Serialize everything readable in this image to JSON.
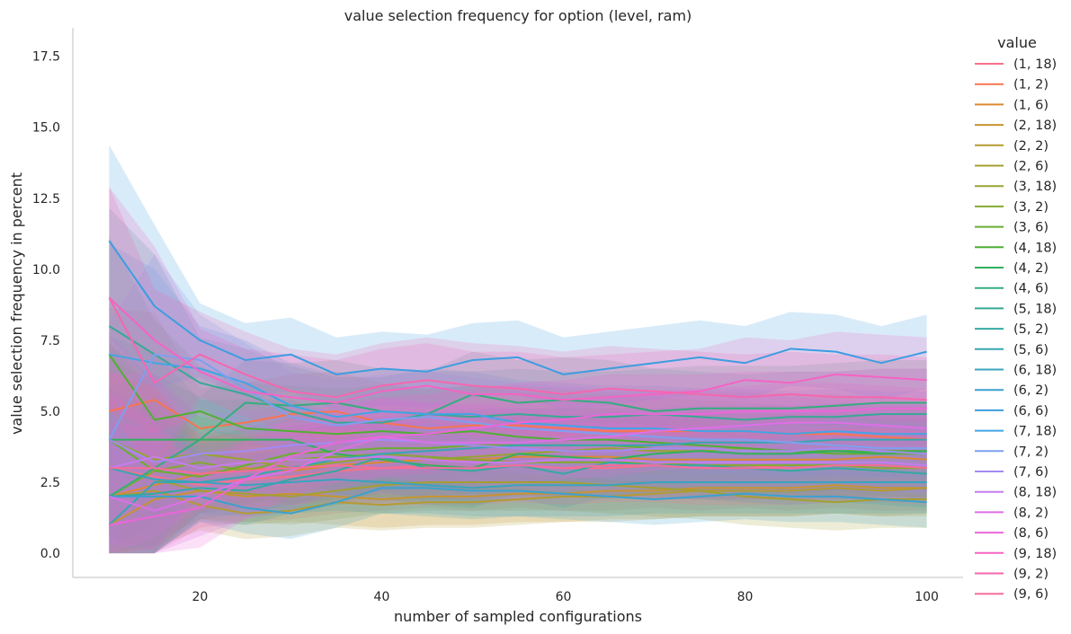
{
  "chart_data": {
    "type": "line",
    "title": "value selection frequency for option (level, ram)",
    "xlabel": "number of sampled configurations",
    "ylabel": "value selection frequency in percent",
    "xlim": [
      6,
      104
    ],
    "ylim": [
      -0.85,
      18.5
    ],
    "xticks": [
      20,
      40,
      60,
      80,
      100
    ],
    "yticks": [
      0.0,
      2.5,
      5.0,
      7.5,
      10.0,
      12.5,
      15.0,
      17.5
    ],
    "ytick_labels": [
      "0.0",
      "2.5",
      "5.0",
      "7.5",
      "10.0",
      "12.5",
      "15.0",
      "17.5"
    ],
    "grid": false,
    "legend_title": "value",
    "legend_position": "right",
    "x": [
      10,
      15,
      20,
      25,
      30,
      35,
      40,
      45,
      50,
      55,
      60,
      65,
      70,
      75,
      80,
      85,
      90,
      95,
      100
    ],
    "series": [
      {
        "name": "(1, 18)",
        "color": "#f77189",
        "values": [
          3,
          2.7,
          2.4,
          2.6,
          2.7,
          2.9,
          3.0,
          3.1,
          3.0,
          3.1,
          3.0,
          3.0,
          3.1,
          3.0,
          3.1,
          3.0,
          3.1,
          3.0,
          3.0
        ],
        "ci_halfwidth": 1.5
      },
      {
        "name": "(1, 2)",
        "color": "#f7754f",
        "values": [
          5,
          5.4,
          4.4,
          4.6,
          4.9,
          5.0,
          4.6,
          4.4,
          4.5,
          4.5,
          4.4,
          4.3,
          4.3,
          4.3,
          4.3,
          4.2,
          4.2,
          4.1,
          4.0
        ],
        "ci_halfwidth": 1.4
      },
      {
        "name": "(1, 6)",
        "color": "#dc8932",
        "values": [
          2,
          2.4,
          2.8,
          3.0,
          2.9,
          3.1,
          3.2,
          3.3,
          3.3,
          3.4,
          3.4,
          3.4,
          3.3,
          3.3,
          3.3,
          3.3,
          3.3,
          3.4,
          3.3
        ],
        "ci_halfwidth": 1.4
      },
      {
        "name": "(2, 18)",
        "color": "#c69432",
        "values": [
          1,
          1.9,
          2.2,
          2.0,
          2.1,
          2.0,
          1.9,
          2.0,
          2.0,
          2.1,
          2.1,
          2.2,
          2.2,
          2.3,
          2.3,
          2.3,
          2.4,
          2.3,
          2.3
        ],
        "ci_halfwidth": 1.0
      },
      {
        "name": "(2, 2)",
        "color": "#b59a32",
        "values": [
          2,
          2.2,
          1.7,
          1.4,
          1.5,
          1.8,
          1.7,
          1.8,
          1.8,
          1.9,
          2.0,
          2.0,
          2.1,
          2.2,
          2.2,
          2.2,
          2.3,
          2.2,
          2.3
        ],
        "ci_halfwidth": 0.9
      },
      {
        "name": "(2, 6)",
        "color": "#a59f31",
        "values": [
          3,
          2.6,
          2.2,
          2.1,
          2.0,
          2.2,
          2.4,
          2.5,
          2.5,
          2.5,
          2.5,
          2.4,
          2.3,
          2.2,
          2.0,
          1.9,
          1.8,
          1.9,
          1.9
        ],
        "ci_halfwidth": 1.0
      },
      {
        "name": "(3, 18)",
        "color": "#97a431",
        "values": [
          4,
          3.3,
          3.5,
          3.3,
          3.0,
          3.2,
          3.4,
          3.3,
          3.4,
          3.5,
          3.6,
          3.7,
          3.6,
          3.6,
          3.7,
          3.6,
          3.6,
          3.6,
          3.5
        ],
        "ci_halfwidth": 1.3
      },
      {
        "name": "(3, 2)",
        "color": "#86a831",
        "values": [
          2,
          2.9,
          3.2,
          2.9,
          3.3,
          3.4,
          3.5,
          3.4,
          3.3,
          3.2,
          3.2,
          3.2,
          3.2,
          3.1,
          3.1,
          3.1,
          3.1,
          3.0,
          3.0
        ],
        "ci_halfwidth": 1.2
      },
      {
        "name": "(3, 6)",
        "color": "#6aae31",
        "values": [
          4,
          2.9,
          2.7,
          3.1,
          3.5,
          3.6,
          3.7,
          3.7,
          3.8,
          3.8,
          3.8,
          3.8,
          3.7,
          3.7,
          3.6,
          3.6,
          3.5,
          3.5,
          3.5
        ],
        "ci_halfwidth": 1.3
      },
      {
        "name": "(4, 18)",
        "color": "#4fb031",
        "values": [
          7,
          4.7,
          5.0,
          4.4,
          4.3,
          4.2,
          4.3,
          4.2,
          4.3,
          4.1,
          4.0,
          4.0,
          3.9,
          3.8,
          3.7,
          3.6,
          3.6,
          3.6,
          3.6
        ],
        "ci_halfwidth": 1.6
      },
      {
        "name": "(4, 2)",
        "color": "#33b05e",
        "values": [
          4,
          4,
          4,
          4,
          4,
          3.5,
          3.3,
          3.1,
          3.0,
          3.5,
          3.4,
          3.3,
          3.5,
          3.6,
          3.5,
          3.5,
          3.6,
          3.5,
          3.6
        ],
        "ci_halfwidth": 1.4
      },
      {
        "name": "(4, 6)",
        "color": "#34ad7e",
        "values": [
          2,
          3.0,
          4.0,
          5.3,
          5.2,
          5.3,
          5.0,
          4.9,
          5.6,
          5.3,
          5.4,
          5.3,
          5.0,
          5.1,
          5.1,
          5.1,
          5.2,
          5.3,
          5.3
        ],
        "ci_halfwidth": 1.5
      },
      {
        "name": "(5, 18)",
        "color": "#35aa93",
        "values": [
          8,
          7.0,
          6.0,
          5.6,
          5.0,
          4.6,
          4.6,
          4.9,
          4.8,
          4.9,
          4.8,
          4.8,
          4.9,
          4.8,
          4.7,
          4.8,
          4.8,
          4.9,
          4.9
        ],
        "ci_halfwidth": 1.6
      },
      {
        "name": "(5, 2)",
        "color": "#36a8a2",
        "values": [
          2,
          2.1,
          2.3,
          2.2,
          2.6,
          2.9,
          3.4,
          3.0,
          2.9,
          3.1,
          2.8,
          3.2,
          3.1,
          3.1,
          3.0,
          2.9,
          3.0,
          2.9,
          2.8
        ],
        "ci_halfwidth": 1.2
      },
      {
        "name": "(5, 6)",
        "color": "#37a6b0",
        "values": [
          1,
          2.5,
          2.5,
          2.7,
          3.0,
          3.3,
          3.5,
          3.6,
          3.7,
          3.8,
          3.8,
          3.8,
          3.8,
          3.9,
          3.9,
          3.9,
          4.0,
          4.0,
          4.0
        ],
        "ci_halfwidth": 1.3
      },
      {
        "name": "(6, 18)",
        "color": "#38a4be",
        "values": [
          3,
          2.6,
          2.5,
          2.4,
          2.5,
          2.6,
          2.5,
          2.4,
          2.3,
          2.4,
          2.4,
          2.4,
          2.5,
          2.5,
          2.5,
          2.5,
          2.5,
          2.5,
          2.5
        ],
        "ci_halfwidth": 1.1
      },
      {
        "name": "(6, 2)",
        "color": "#3aa1cf",
        "values": [
          2,
          2.0,
          2.0,
          1.6,
          1.4,
          1.8,
          2.3,
          2.3,
          2.2,
          2.2,
          2.1,
          2.0,
          1.9,
          2.0,
          2.1,
          2.0,
          2.0,
          1.9,
          1.8
        ],
        "ci_halfwidth": 0.9
      },
      {
        "name": "(6, 6)",
        "color": "#3c9de0",
        "values": [
          11,
          8.7,
          7.5,
          6.8,
          7.0,
          6.3,
          6.5,
          6.4,
          6.8,
          6.9,
          6.3,
          6.5,
          6.7,
          6.9,
          6.7,
          7.2,
          7.1,
          6.7,
          7.1
        ],
        "ci_halfwidth": 1.3
      },
      {
        "name": "(7, 18)",
        "color": "#41a5e5",
        "values": [
          7,
          6.7,
          6.5,
          6.0,
          5.2,
          4.8,
          5.0,
          4.9,
          4.9,
          4.6,
          4.5,
          4.4,
          4.4,
          4.3,
          4.3,
          4.2,
          4.3,
          4.2,
          4.2
        ],
        "ci_halfwidth": 1.5
      },
      {
        "name": "(7, 2)",
        "color": "#7f9ff0",
        "values": [
          4,
          7.0,
          6.8,
          5.8,
          4.8,
          4.5,
          4.7,
          4.8,
          4.6,
          4.4,
          4.3,
          4.2,
          4.1,
          4.0,
          4.0,
          3.9,
          3.8,
          3.7,
          3.7
        ],
        "ci_halfwidth": 1.6
      },
      {
        "name": "(7, 6)",
        "color": "#a38af3",
        "values": [
          4,
          3.2,
          3.5,
          3.6,
          3.8,
          3.9,
          4.0,
          3.9,
          3.8,
          3.7,
          3.6,
          3.6,
          3.7,
          3.7,
          3.6,
          3.6,
          3.7,
          3.6,
          3.5
        ],
        "ci_halfwidth": 1.4
      },
      {
        "name": "(8, 18)",
        "color": "#c67cee",
        "values": [
          3,
          3.4,
          3.0,
          3.2,
          3.3,
          3.3,
          3.4,
          3.3,
          3.2,
          3.2,
          3.3,
          3.3,
          3.2,
          3.2,
          3.2,
          3.2,
          3.2,
          3.2,
          3.1
        ],
        "ci_halfwidth": 1.3
      },
      {
        "name": "(8, 2)",
        "color": "#dd6fe8",
        "values": [
          2,
          1.5,
          2.0,
          2.6,
          2.9,
          3.6,
          4.1,
          3.9,
          3.9,
          3.9,
          4.0,
          4.1,
          4.3,
          4.4,
          4.5,
          4.6,
          4.6,
          4.5,
          4.4
        ],
        "ci_halfwidth": 1.4
      },
      {
        "name": "(8, 6)",
        "color": "#ec66d8",
        "values": [
          1,
          1.3,
          1.6,
          2.6,
          3.4,
          3.9,
          4.1,
          4.2,
          4.4,
          4.6,
          4.7,
          4.9,
          4.9,
          4.9,
          5.0,
          5.0,
          5.0,
          5.1,
          5.1
        ],
        "ci_halfwidth": 1.4
      },
      {
        "name": "(9, 18)",
        "color": "#f563c4",
        "values": [
          9,
          7.5,
          6.4,
          5.7,
          5.5,
          5.3,
          5.7,
          5.9,
          5.6,
          5.6,
          5.4,
          5.5,
          5.6,
          5.7,
          6.1,
          6.0,
          6.3,
          6.2,
          6.1
        ],
        "ci_halfwidth": 1.5
      },
      {
        "name": "(9, 2)",
        "color": "#f666ae",
        "values": [
          9,
          6.0,
          7.0,
          6.3,
          5.7,
          5.5,
          5.9,
          6.1,
          5.9,
          5.8,
          5.6,
          5.8,
          5.7,
          5.6,
          5.5,
          5.6,
          5.5,
          5.5,
          5.4
        ],
        "ci_halfwidth": 1.5
      },
      {
        "name": "(9, 6)",
        "color": "#f66c9b",
        "values": [
          3,
          3.0,
          2.8,
          2.9,
          3.0,
          3.1,
          3.0,
          3.0,
          3.0,
          3.1,
          3.0,
          3.1,
          3.1,
          3.0,
          3.0,
          3.0,
          3.1,
          3.1,
          3.0
        ],
        "ci_halfwidth": 1.3
      }
    ]
  }
}
